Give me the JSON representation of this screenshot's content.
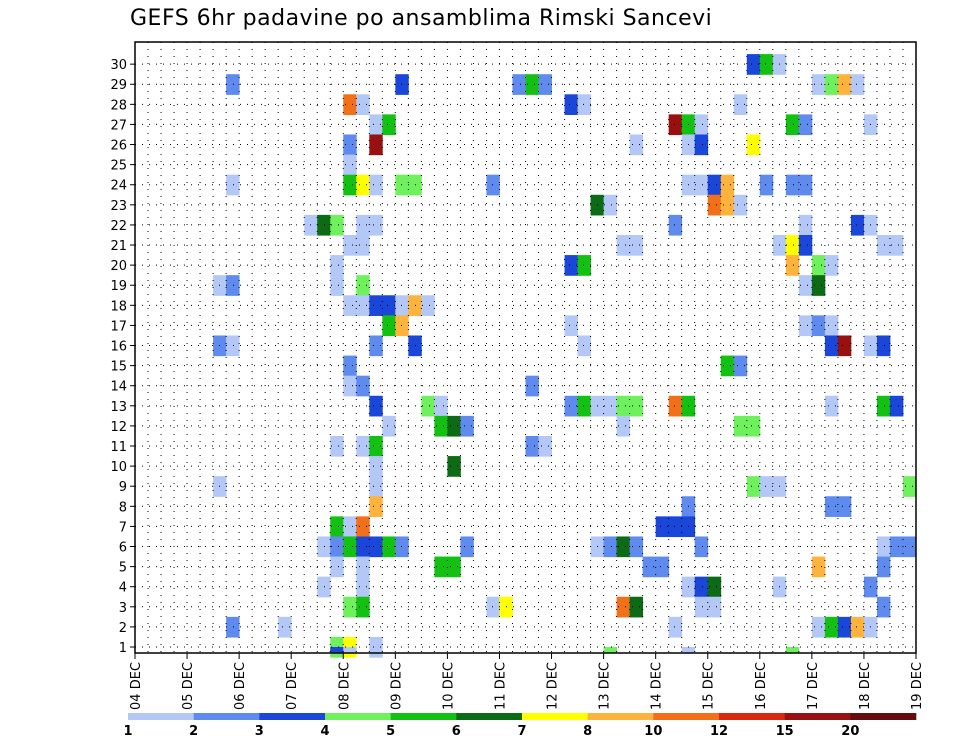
{
  "title": "GEFS 6hr padavine po ansamblima Rimski Sancevi",
  "chart_data": {
    "type": "heatmap",
    "title": "GEFS 6hr padavine po ansamblima Rimski Sancevi",
    "x_ticks": [
      "04 DEC",
      "05 DEC",
      "06 DEC",
      "07 DEC",
      "08 DEC",
      "09 DEC",
      "10 DEC",
      "11 DEC",
      "12 DEC",
      "13 DEC",
      "14 DEC",
      "15 DEC",
      "16 DEC",
      "17 DEC",
      "18 DEC",
      "19 DEC"
    ],
    "y_ticks": [
      1,
      2,
      3,
      4,
      5,
      6,
      7,
      8,
      9,
      10,
      11,
      12,
      13,
      14,
      15,
      16,
      17,
      18,
      19,
      20,
      21,
      22,
      23,
      24,
      25,
      26,
      27,
      28,
      29,
      30
    ],
    "xlim": [
      0,
      60
    ],
    "ylim": [
      0,
      30
    ],
    "grid": true,
    "colorbar": {
      "labels": [
        "1",
        "2",
        "3",
        "4",
        "5",
        "6",
        "7",
        "8",
        "10",
        "12",
        "15",
        "20"
      ],
      "colors": [
        "#b3c8f6",
        "#5e8bed",
        "#1a47d9",
        "#6ff05d",
        "#13c113",
        "#0e6b15",
        "#ffff00",
        "#feb43c",
        "#f2701a",
        "#d8290e",
        "#981010",
        "#650d0d"
      ]
    },
    "cells": [
      [
        1,
        0.05,
        1
      ],
      [
        1,
        1.05,
        1
      ],
      [
        1,
        2.0,
        1
      ],
      [
        1,
        3.0,
        1
      ],
      [
        1,
        5.0,
        1
      ],
      [
        1,
        6.0,
        1
      ],
      [
        1,
        7.0,
        1
      ],
      [
        1,
        8.0,
        1
      ],
      [
        1,
        9.0,
        1
      ],
      [
        1,
        10.0,
        1
      ],
      [
        1,
        11.0,
        1
      ],
      [
        1,
        12.0,
        1
      ],
      [
        1,
        13.0,
        1
      ],
      [
        1,
        14.0,
        1
      ],
      [
        1,
        15.0,
        1
      ],
      [
        1,
        16.0,
        1
      ],
      [
        1,
        17.0,
        1
      ],
      [
        1,
        18.0,
        1
      ],
      [
        1,
        19.0,
        1
      ],
      [
        1,
        20.0,
        1
      ],
      [
        1,
        21.0,
        1
      ],
      [
        1,
        22.0,
        1
      ],
      [
        1,
        23.0,
        1
      ],
      [
        1,
        24.0,
        1
      ],
      [
        1,
        25.0,
        1
      ],
      [
        1,
        26.0,
        1
      ],
      [
        1,
        27.0,
        1
      ],
      [
        1,
        28.0,
        1
      ],
      [
        1,
        29.0,
        1
      ],
      [
        1,
        30.0,
        1
      ]
    ],
    "values": [
      {
        "x": 48,
        "y": 30,
        "v": 3
      },
      {
        "x": 49,
        "y": 30,
        "v": 5
      },
      {
        "x": 50,
        "y": 30,
        "v": 1
      },
      {
        "x": 8,
        "y": 29,
        "v": 2
      },
      {
        "x": 21,
        "y": 29,
        "v": 3
      },
      {
        "x": 30,
        "y": 29,
        "v": 2
      },
      {
        "x": 31,
        "y": 29,
        "v": 5
      },
      {
        "x": 32,
        "y": 29,
        "v": 2
      },
      {
        "x": 53,
        "y": 29,
        "v": 1
      },
      {
        "x": 54,
        "y": 29,
        "v": 4
      },
      {
        "x": 55,
        "y": 29,
        "v": 8
      },
      {
        "x": 56,
        "y": 29,
        "v": 1
      },
      {
        "x": 17,
        "y": 28,
        "v": 10
      },
      {
        "x": 18,
        "y": 28,
        "v": 1
      },
      {
        "x": 34,
        "y": 28,
        "v": 3
      },
      {
        "x": 35,
        "y": 28,
        "v": 1
      },
      {
        "x": 47,
        "y": 28,
        "v": 1
      },
      {
        "x": 19,
        "y": 27,
        "v": 1
      },
      {
        "x": 20,
        "y": 27,
        "v": 5
      },
      {
        "x": 42,
        "y": 27,
        "v": 15
      },
      {
        "x": 43,
        "y": 27,
        "v": 5
      },
      {
        "x": 44,
        "y": 27,
        "v": 1
      },
      {
        "x": 51,
        "y": 27,
        "v": 5
      },
      {
        "x": 52,
        "y": 27,
        "v": 2
      },
      {
        "x": 57,
        "y": 27,
        "v": 1
      },
      {
        "x": 17,
        "y": 26,
        "v": 2
      },
      {
        "x": 19,
        "y": 26,
        "v": 15
      },
      {
        "x": 39,
        "y": 26,
        "v": 1
      },
      {
        "x": 43,
        "y": 26,
        "v": 1
      },
      {
        "x": 44,
        "y": 26,
        "v": 3
      },
      {
        "x": 48,
        "y": 26,
        "v": 7
      },
      {
        "x": 17,
        "y": 25,
        "v": 1
      },
      {
        "x": 8,
        "y": 24,
        "v": 1
      },
      {
        "x": 17,
        "y": 24,
        "v": 5
      },
      {
        "x": 18,
        "y": 24,
        "v": 7
      },
      {
        "x": 19,
        "y": 24,
        "v": 1
      },
      {
        "x": 21,
        "y": 24,
        "v": 4
      },
      {
        "x": 22,
        "y": 24,
        "v": 4
      },
      {
        "x": 28,
        "y": 24,
        "v": 2
      },
      {
        "x": 43,
        "y": 24,
        "v": 1
      },
      {
        "x": 44,
        "y": 24,
        "v": 1
      },
      {
        "x": 45,
        "y": 24,
        "v": 3
      },
      {
        "x": 46,
        "y": 24,
        "v": 8
      },
      {
        "x": 49,
        "y": 24,
        "v": 2
      },
      {
        "x": 51,
        "y": 24,
        "v": 2
      },
      {
        "x": 52,
        "y": 24,
        "v": 2
      },
      {
        "x": 36,
        "y": 23,
        "v": 6
      },
      {
        "x": 37,
        "y": 23,
        "v": 1
      },
      {
        "x": 45,
        "y": 23,
        "v": 10
      },
      {
        "x": 46,
        "y": 23,
        "v": 8
      },
      {
        "x": 47,
        "y": 23,
        "v": 1
      },
      {
        "x": 14,
        "y": 22,
        "v": 1
      },
      {
        "x": 15,
        "y": 22,
        "v": 6
      },
      {
        "x": 16,
        "y": 22,
        "v": 4
      },
      {
        "x": 18,
        "y": 22,
        "v": 1
      },
      {
        "x": 19,
        "y": 22,
        "v": 1
      },
      {
        "x": 42,
        "y": 22,
        "v": 2
      },
      {
        "x": 52,
        "y": 22,
        "v": 1
      },
      {
        "x": 56,
        "y": 22,
        "v": 3
      },
      {
        "x": 57,
        "y": 22,
        "v": 1
      },
      {
        "x": 17,
        "y": 21,
        "v": 1
      },
      {
        "x": 18,
        "y": 21,
        "v": 1
      },
      {
        "x": 38,
        "y": 21,
        "v": 1
      },
      {
        "x": 39,
        "y": 21,
        "v": 1
      },
      {
        "x": 50,
        "y": 21,
        "v": 1
      },
      {
        "x": 51,
        "y": 21,
        "v": 7
      },
      {
        "x": 52,
        "y": 21,
        "v": 3
      },
      {
        "x": 58,
        "y": 21,
        "v": 1
      },
      {
        "x": 59,
        "y": 21,
        "v": 1
      },
      {
        "x": 16,
        "y": 20,
        "v": 1
      },
      {
        "x": 34,
        "y": 20,
        "v": 3
      },
      {
        "x": 35,
        "y": 20,
        "v": 5
      },
      {
        "x": 51,
        "y": 20,
        "v": 8
      },
      {
        "x": 53,
        "y": 20,
        "v": 4
      },
      {
        "x": 54,
        "y": 20,
        "v": 1
      },
      {
        "x": 7,
        "y": 19,
        "v": 1
      },
      {
        "x": 8,
        "y": 19,
        "v": 2
      },
      {
        "x": 16,
        "y": 19,
        "v": 1
      },
      {
        "x": 18,
        "y": 19,
        "v": 4
      },
      {
        "x": 52,
        "y": 19,
        "v": 1
      },
      {
        "x": 53,
        "y": 19,
        "v": 6
      },
      {
        "x": 17,
        "y": 18,
        "v": 1
      },
      {
        "x": 18,
        "y": 18,
        "v": 1
      },
      {
        "x": 19,
        "y": 18,
        "v": 3
      },
      {
        "x": 20,
        "y": 18,
        "v": 3
      },
      {
        "x": 21,
        "y": 18,
        "v": 1
      },
      {
        "x": 22,
        "y": 18,
        "v": 8
      },
      {
        "x": 23,
        "y": 18,
        "v": 1
      },
      {
        "x": 20,
        "y": 17,
        "v": 5
      },
      {
        "x": 21,
        "y": 17,
        "v": 8
      },
      {
        "x": 34,
        "y": 17,
        "v": 1
      },
      {
        "x": 52,
        "y": 17,
        "v": 1
      },
      {
        "x": 53,
        "y": 17,
        "v": 2
      },
      {
        "x": 54,
        "y": 17,
        "v": 1
      },
      {
        "x": 7,
        "y": 16,
        "v": 2
      },
      {
        "x": 8,
        "y": 16,
        "v": 1
      },
      {
        "x": 19,
        "y": 16,
        "v": 2
      },
      {
        "x": 22,
        "y": 16,
        "v": 3
      },
      {
        "x": 35,
        "y": 16,
        "v": 1
      },
      {
        "x": 54,
        "y": 16,
        "v": 3
      },
      {
        "x": 55,
        "y": 16,
        "v": 15
      },
      {
        "x": 57,
        "y": 16,
        "v": 1
      },
      {
        "x": 58,
        "y": 16,
        "v": 3
      },
      {
        "x": 17,
        "y": 15,
        "v": 2
      },
      {
        "x": 46,
        "y": 15,
        "v": 5
      },
      {
        "x": 47,
        "y": 15,
        "v": 2
      },
      {
        "x": 17,
        "y": 14,
        "v": 1
      },
      {
        "x": 18,
        "y": 14,
        "v": 2
      },
      {
        "x": 31,
        "y": 14,
        "v": 2
      },
      {
        "x": 19,
        "y": 13,
        "v": 3
      },
      {
        "x": 23,
        "y": 13,
        "v": 4
      },
      {
        "x": 24,
        "y": 13,
        "v": 1
      },
      {
        "x": 34,
        "y": 13,
        "v": 2
      },
      {
        "x": 35,
        "y": 13,
        "v": 5
      },
      {
        "x": 36,
        "y": 13,
        "v": 1
      },
      {
        "x": 37,
        "y": 13,
        "v": 1
      },
      {
        "x": 38,
        "y": 13,
        "v": 4
      },
      {
        "x": 39,
        "y": 13,
        "v": 4
      },
      {
        "x": 42,
        "y": 13,
        "v": 10
      },
      {
        "x": 43,
        "y": 13,
        "v": 5
      },
      {
        "x": 54,
        "y": 13,
        "v": 1
      },
      {
        "x": 58,
        "y": 13,
        "v": 5
      },
      {
        "x": 59,
        "y": 13,
        "v": 3
      },
      {
        "x": 20,
        "y": 12,
        "v": 1
      },
      {
        "x": 24,
        "y": 12,
        "v": 5
      },
      {
        "x": 25,
        "y": 12,
        "v": 6
      },
      {
        "x": 26,
        "y": 12,
        "v": 2
      },
      {
        "x": 38,
        "y": 12,
        "v": 1
      },
      {
        "x": 47,
        "y": 12,
        "v": 4
      },
      {
        "x": 48,
        "y": 12,
        "v": 4
      },
      {
        "x": 16,
        "y": 11,
        "v": 1
      },
      {
        "x": 18,
        "y": 11,
        "v": 1
      },
      {
        "x": 19,
        "y": 11,
        "v": 5
      },
      {
        "x": 31,
        "y": 11,
        "v": 2
      },
      {
        "x": 32,
        "y": 11,
        "v": 1
      },
      {
        "x": 19,
        "y": 10,
        "v": 1
      },
      {
        "x": 25,
        "y": 10,
        "v": 6
      },
      {
        "x": 7,
        "y": 9,
        "v": 1
      },
      {
        "x": 19,
        "y": 9,
        "v": 1
      },
      {
        "x": 48,
        "y": 9,
        "v": 4
      },
      {
        "x": 49,
        "y": 9,
        "v": 1
      },
      {
        "x": 50,
        "y": 9,
        "v": 1
      },
      {
        "x": 60,
        "y": 9,
        "v": 4
      },
      {
        "x": 19,
        "y": 8,
        "v": 8
      },
      {
        "x": 43,
        "y": 8,
        "v": 2
      },
      {
        "x": 54,
        "y": 8,
        "v": 2
      },
      {
        "x": 55,
        "y": 8,
        "v": 2
      },
      {
        "x": 16,
        "y": 7,
        "v": 5
      },
      {
        "x": 17,
        "y": 7,
        "v": 1
      },
      {
        "x": 18,
        "y": 7,
        "v": 10
      },
      {
        "x": 41,
        "y": 7,
        "v": 3
      },
      {
        "x": 42,
        "y": 7,
        "v": 3
      },
      {
        "x": 43,
        "y": 7,
        "v": 3
      },
      {
        "x": 15,
        "y": 6,
        "v": 1
      },
      {
        "x": 16,
        "y": 6,
        "v": 2
      },
      {
        "x": 17,
        "y": 6,
        "v": 5
      },
      {
        "x": 18,
        "y": 6,
        "v": 3
      },
      {
        "x": 19,
        "y": 6,
        "v": 3
      },
      {
        "x": 20,
        "y": 6,
        "v": 5
      },
      {
        "x": 21,
        "y": 6,
        "v": 2
      },
      {
        "x": 26,
        "y": 6,
        "v": 2
      },
      {
        "x": 36,
        "y": 6,
        "v": 1
      },
      {
        "x": 37,
        "y": 6,
        "v": 2
      },
      {
        "x": 38,
        "y": 6,
        "v": 6
      },
      {
        "x": 39,
        "y": 6,
        "v": 2
      },
      {
        "x": 44,
        "y": 6,
        "v": 2
      },
      {
        "x": 58,
        "y": 6,
        "v": 1
      },
      {
        "x": 59,
        "y": 6,
        "v": 2
      },
      {
        "x": 60,
        "y": 6,
        "v": 2
      },
      {
        "x": 16,
        "y": 5,
        "v": 1
      },
      {
        "x": 18,
        "y": 5,
        "v": 1
      },
      {
        "x": 24,
        "y": 5,
        "v": 5
      },
      {
        "x": 25,
        "y": 5,
        "v": 5
      },
      {
        "x": 40,
        "y": 5,
        "v": 2
      },
      {
        "x": 41,
        "y": 5,
        "v": 2
      },
      {
        "x": 53,
        "y": 5,
        "v": 8
      },
      {
        "x": 58,
        "y": 5,
        "v": 2
      },
      {
        "x": 15,
        "y": 4,
        "v": 1
      },
      {
        "x": 18,
        "y": 4,
        "v": 1
      },
      {
        "x": 43,
        "y": 4,
        "v": 1
      },
      {
        "x": 44,
        "y": 4,
        "v": 3
      },
      {
        "x": 45,
        "y": 4,
        "v": 6
      },
      {
        "x": 50,
        "y": 4,
        "v": 1
      },
      {
        "x": 57,
        "y": 4,
        "v": 2
      },
      {
        "x": 17,
        "y": 3,
        "v": 4
      },
      {
        "x": 18,
        "y": 3,
        "v": 5
      },
      {
        "x": 28,
        "y": 3,
        "v": 1
      },
      {
        "x": 29,
        "y": 3,
        "v": 7
      },
      {
        "x": 38,
        "y": 3,
        "v": 10
      },
      {
        "x": 39,
        "y": 3,
        "v": 6
      },
      {
        "x": 44,
        "y": 3,
        "v": 1
      },
      {
        "x": 45,
        "y": 3,
        "v": 1
      },
      {
        "x": 58,
        "y": 3,
        "v": 2
      },
      {
        "x": 8,
        "y": 2,
        "v": 2
      },
      {
        "x": 12,
        "y": 2,
        "v": 1
      },
      {
        "x": 42,
        "y": 2,
        "v": 1
      },
      {
        "x": 53,
        "y": 2,
        "v": 1
      },
      {
        "x": 54,
        "y": 2,
        "v": 5
      },
      {
        "x": 55,
        "y": 2,
        "v": 3
      },
      {
        "x": 56,
        "y": 2,
        "v": 8
      },
      {
        "x": 57,
        "y": 2,
        "v": 1
      },
      {
        "x": 16,
        "y": 1,
        "v": 4
      },
      {
        "x": 17,
        "y": 1,
        "v": 7
      },
      {
        "x": 19,
        "y": 1,
        "v": 1
      },
      {
        "x": 16,
        "y": 0,
        "v": 3
      },
      {
        "x": 17,
        "y": 0,
        "v": 1
      },
      {
        "x": 37,
        "y": 0,
        "v": 4
      },
      {
        "x": 43,
        "y": 0,
        "v": 1
      },
      {
        "x": 51,
        "y": 0,
        "v": 4
      }
    ]
  }
}
